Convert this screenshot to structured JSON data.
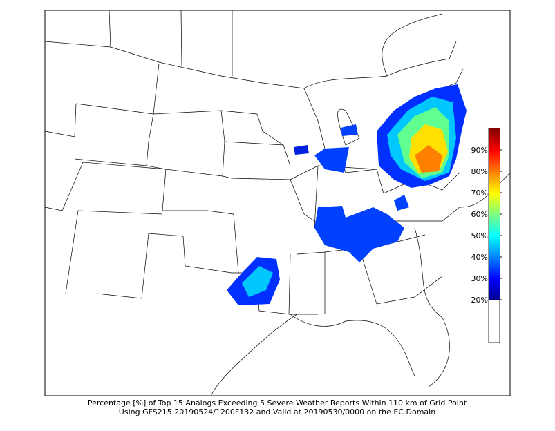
{
  "colorbar": {
    "lim": [
      0,
      100
    ],
    "ticks": [
      {
        "value": 20,
        "label": "20%"
      },
      {
        "value": 30,
        "label": "30%"
      },
      {
        "value": 40,
        "label": "40%"
      },
      {
        "value": 50,
        "label": "50%"
      },
      {
        "value": 60,
        "label": "60%"
      },
      {
        "value": 70,
        "label": "70%"
      },
      {
        "value": 80,
        "label": "80%"
      },
      {
        "value": 90,
        "label": "90%"
      }
    ]
  },
  "caption": {
    "line1": "Percentage [%] of Top 15 Analogs Exceeding 5 Severe Weather Reports Within 110 km of Grid Point",
    "line2": "Using GFS215 20190524/1200F132 and Valid at 20190530/0000 on the EC Domain"
  }
}
